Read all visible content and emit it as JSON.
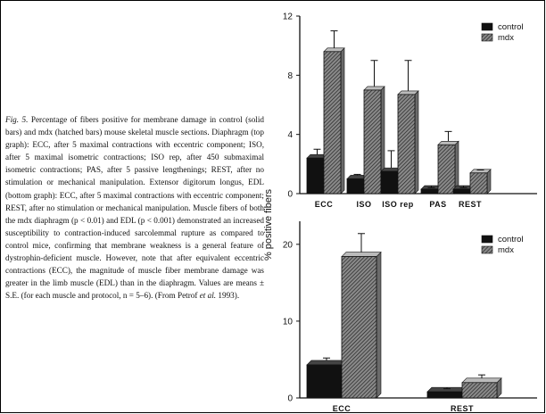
{
  "caption": {
    "fig_label": "Fig. 5.",
    "text_part1": " Percentage of fibers positive for membrane damage in control (solid bars) and mdx (hatched bars) mouse skeletal muscle sections. Diaphragm (top graph): ECC, after 5 maximal contractions with eccentric component; ISO, after 5 maximal isometric contractions; ISO rep, after 450 submaximal isometric contractions; PAS, after 5 passive lengthenings; REST, after no stimulation or mechanical manipulation. Extensor digitorum longus, EDL (bottom graph): ECC, after 5 maximal contractions with eccentric component; REST, after no stimulation or mechanical manipulation. Muscle fibers of both the mdx diaphragm (p < 0.01) and EDL (p < 0.001) demonstrated an increased susceptibility to contraction-induced sarcolemmal rupture as compared to control mice, confirming that membrane weakness is a general feature of dystrophin-deficient muscle. However, note that after equivalent eccentric contractions (ECC), the magnitude of muscle fiber membrane damage was greater in the limb muscle (EDL) than in the diaphragm. Values are means ± S.E. (for each muscle and protocol, n = 5–6). (From Petrof ",
    "et_al": "et al.",
    "text_part2": " 1993)."
  },
  "ylabel": "% positive fibers",
  "colors": {
    "control": "#111111",
    "mdx": "#555555",
    "axis": "#111111"
  },
  "chart_data": [
    {
      "type": "bar",
      "categories": [
        "ECC",
        "ISO",
        "ISO rep",
        "PAS",
        "REST"
      ],
      "series": [
        {
          "name": "control",
          "values": [
            2.4,
            1.0,
            1.5,
            0.3,
            0.3
          ],
          "errors": [
            0.6,
            0.3,
            1.4,
            0.1,
            0.1
          ]
        },
        {
          "name": "mdx",
          "values": [
            9.6,
            7.0,
            6.7,
            3.3,
            1.4
          ],
          "errors": [
            1.4,
            2.0,
            2.3,
            0.9,
            0.2
          ]
        }
      ],
      "yticks": [
        0,
        4,
        8,
        12
      ],
      "ylim": [
        0,
        12
      ]
    },
    {
      "type": "bar",
      "categories": [
        "ECC",
        "REST"
      ],
      "series": [
        {
          "name": "control",
          "values": [
            4.3,
            0.8
          ],
          "errors": [
            0.9,
            0.4
          ]
        },
        {
          "name": "mdx",
          "values": [
            18.4,
            2.0
          ],
          "errors": [
            3.0,
            1.0
          ]
        }
      ],
      "yticks": [
        0,
        10,
        20
      ],
      "ylim": [
        0,
        23
      ]
    }
  ]
}
